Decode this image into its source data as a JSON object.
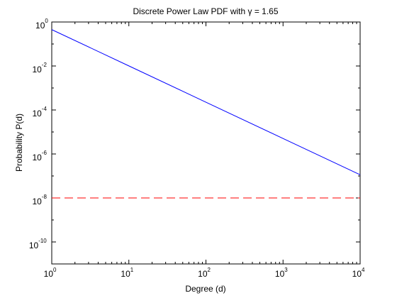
{
  "chart_data": {
    "type": "line",
    "title": "Discrete Power Law PDF with γ = 1.65",
    "xlabel": "Degree (d)",
    "ylabel": "Probability P(d)",
    "xscale": "log",
    "yscale": "log",
    "xlim": [
      1,
      10000
    ],
    "ylim": [
      1e-11,
      1
    ],
    "xticks": [
      {
        "base": "10",
        "exp": "0",
        "value": 1
      },
      {
        "base": "10",
        "exp": "1",
        "value": 10
      },
      {
        "base": "10",
        "exp": "2",
        "value": 100
      },
      {
        "base": "10",
        "exp": "3",
        "value": 1000
      },
      {
        "base": "10",
        "exp": "4",
        "value": 10000
      }
    ],
    "yticks": [
      {
        "base": "10",
        "exp": "-10",
        "value": 1e-10
      },
      {
        "base": "10",
        "exp": "-8",
        "value": 1e-08
      },
      {
        "base": "10",
        "exp": "-6",
        "value": 1e-06
      },
      {
        "base": "10",
        "exp": "-4",
        "value": 0.0001
      },
      {
        "base": "10",
        "exp": "-2",
        "value": 0.01
      },
      {
        "base": "10",
        "exp": "0",
        "value": 1
      }
    ],
    "grid": false,
    "legend": "none",
    "series": [
      {
        "style": "solid",
        "color": "#0000ff",
        "x": [
          1,
          10,
          100,
          1000,
          10000
        ],
        "y": [
          0.45,
          0.0101,
          0.000226,
          5.05e-06,
          1.13e-07
        ]
      },
      {
        "style": "dashed",
        "color": "#ff0000",
        "x": [
          1,
          10000
        ],
        "y": [
          1e-08,
          1e-08
        ]
      }
    ]
  }
}
